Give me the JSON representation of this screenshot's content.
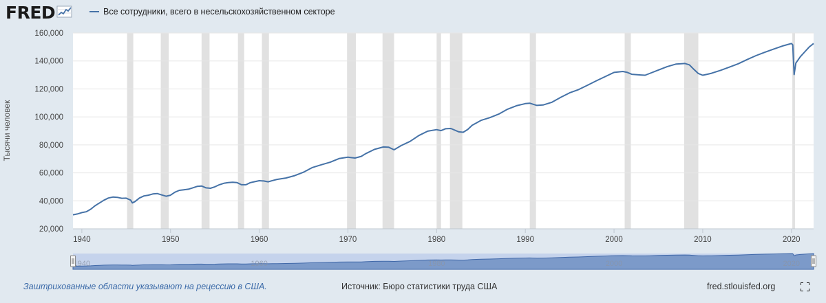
{
  "header": {
    "logo_text": "FRED",
    "logo_icon": "line-chart-icon",
    "series_label": "Все сотрудники, всего в несельскохозяйственном секторе"
  },
  "footer": {
    "recession_note": "Заштрихованные области указывают на рецессию в США.",
    "source": "Источник: Бюро статистики труда США",
    "site": "fred.stlouisfed.org",
    "fullscreen_icon": "fullscreen-icon"
  },
  "colors": {
    "line": "#4572a7",
    "recession": "#e1e1e1",
    "plot_bg": "#ffffff",
    "page_bg": "#e1e9f0",
    "navigator_fill": "#6f8fc3"
  },
  "chart_data": {
    "type": "line",
    "title": "",
    "xlabel": "",
    "ylabel": "Тысячи человек",
    "xlim": [
      1939.0,
      2022.5
    ],
    "ylim": [
      20000,
      160000
    ],
    "x_ticks": [
      1940,
      1950,
      1960,
      1970,
      1980,
      1990,
      2000,
      2010,
      2020
    ],
    "y_ticks": [
      20000,
      40000,
      60000,
      80000,
      100000,
      120000,
      140000,
      160000
    ],
    "y_tick_labels": [
      "20,000",
      "40,000",
      "60,000",
      "80,000",
      "100,000",
      "120,000",
      "140,000",
      "160,000"
    ],
    "grid": true,
    "legend": "top-left",
    "navigator_ticks": [
      "1940",
      "1960",
      "1980",
      "2000",
      "2020"
    ],
    "recessions": [
      [
        1945.1,
        1945.8
      ],
      [
        1948.9,
        1949.8
      ],
      [
        1953.5,
        1954.4
      ],
      [
        1957.6,
        1958.3
      ],
      [
        1960.3,
        1961.1
      ],
      [
        1969.9,
        1970.9
      ],
      [
        1973.9,
        1975.2
      ],
      [
        1980.0,
        1980.5
      ],
      [
        1981.5,
        1982.9
      ],
      [
        1990.5,
        1991.2
      ],
      [
        2001.2,
        2001.9
      ],
      [
        2007.9,
        2009.5
      ],
      [
        2020.1,
        2020.4
      ]
    ],
    "series": [
      {
        "name": "Все сотрудники, всего в несельскохозяйственном секторе",
        "points": [
          [
            1939.0,
            30000
          ],
          [
            1939.5,
            30600
          ],
          [
            1940.0,
            31600
          ],
          [
            1940.5,
            32200
          ],
          [
            1941.0,
            34000
          ],
          [
            1941.5,
            36500
          ],
          [
            1942.0,
            38500
          ],
          [
            1942.5,
            40500
          ],
          [
            1943.0,
            42000
          ],
          [
            1943.5,
            42700
          ],
          [
            1944.0,
            42500
          ],
          [
            1944.5,
            41800
          ],
          [
            1945.0,
            41900
          ],
          [
            1945.5,
            40500
          ],
          [
            1945.7,
            38500
          ],
          [
            1946.0,
            39500
          ],
          [
            1946.5,
            42000
          ],
          [
            1947.0,
            43500
          ],
          [
            1947.5,
            44000
          ],
          [
            1948.0,
            44900
          ],
          [
            1948.5,
            45200
          ],
          [
            1949.0,
            44200
          ],
          [
            1949.5,
            43300
          ],
          [
            1950.0,
            44000
          ],
          [
            1950.5,
            46200
          ],
          [
            1951.0,
            47500
          ],
          [
            1951.5,
            47900
          ],
          [
            1952.0,
            48300
          ],
          [
            1952.5,
            49300
          ],
          [
            1953.0,
            50300
          ],
          [
            1953.5,
            50600
          ],
          [
            1954.0,
            49300
          ],
          [
            1954.5,
            49000
          ],
          [
            1955.0,
            50000
          ],
          [
            1955.5,
            51500
          ],
          [
            1956.0,
            52500
          ],
          [
            1956.5,
            53000
          ],
          [
            1957.0,
            53300
          ],
          [
            1957.5,
            53000
          ],
          [
            1958.0,
            51500
          ],
          [
            1958.5,
            51500
          ],
          [
            1959.0,
            53000
          ],
          [
            1959.5,
            53700
          ],
          [
            1960.0,
            54400
          ],
          [
            1960.5,
            54200
          ],
          [
            1961.0,
            53600
          ],
          [
            1961.5,
            54500
          ],
          [
            1962.0,
            55300
          ],
          [
            1963.0,
            56300
          ],
          [
            1964.0,
            58000
          ],
          [
            1965.0,
            60500
          ],
          [
            1966.0,
            63800
          ],
          [
            1967.0,
            65800
          ],
          [
            1968.0,
            67600
          ],
          [
            1969.0,
            70200
          ],
          [
            1970.0,
            71200
          ],
          [
            1970.8,
            70600
          ],
          [
            1971.5,
            71800
          ],
          [
            1972.0,
            73700
          ],
          [
            1973.0,
            76800
          ],
          [
            1974.0,
            78500
          ],
          [
            1974.6,
            78300
          ],
          [
            1975.2,
            76500
          ],
          [
            1976.0,
            79500
          ],
          [
            1977.0,
            82500
          ],
          [
            1978.0,
            86700
          ],
          [
            1979.0,
            89800
          ],
          [
            1980.0,
            90900
          ],
          [
            1980.5,
            90200
          ],
          [
            1981.0,
            91500
          ],
          [
            1981.6,
            91700
          ],
          [
            1982.5,
            89300
          ],
          [
            1983.0,
            89000
          ],
          [
            1983.5,
            91000
          ],
          [
            1984.0,
            94000
          ],
          [
            1985.0,
            97500
          ],
          [
            1986.0,
            99500
          ],
          [
            1987.0,
            102000
          ],
          [
            1988.0,
            105500
          ],
          [
            1989.0,
            108000
          ],
          [
            1990.0,
            109500
          ],
          [
            1990.5,
            109800
          ],
          [
            1991.3,
            108200
          ],
          [
            1992.0,
            108500
          ],
          [
            1993.0,
            110500
          ],
          [
            1994.0,
            114000
          ],
          [
            1995.0,
            117200
          ],
          [
            1996.0,
            119500
          ],
          [
            1997.0,
            122600
          ],
          [
            1998.0,
            125800
          ],
          [
            1999.0,
            128800
          ],
          [
            2000.0,
            131800
          ],
          [
            2001.0,
            132500
          ],
          [
            2001.5,
            131800
          ],
          [
            2002.0,
            130500
          ],
          [
            2003.0,
            130000
          ],
          [
            2003.5,
            129800
          ],
          [
            2004.0,
            131000
          ],
          [
            2005.0,
            133500
          ],
          [
            2006.0,
            136000
          ],
          [
            2007.0,
            137800
          ],
          [
            2008.0,
            138200
          ],
          [
            2008.5,
            137200
          ],
          [
            2009.0,
            134000
          ],
          [
            2009.5,
            131000
          ],
          [
            2010.0,
            129800
          ],
          [
            2010.5,
            130500
          ],
          [
            2011.0,
            131200
          ],
          [
            2012.0,
            133300
          ],
          [
            2013.0,
            135600
          ],
          [
            2014.0,
            138000
          ],
          [
            2015.0,
            141000
          ],
          [
            2016.0,
            143800
          ],
          [
            2017.0,
            146200
          ],
          [
            2018.0,
            148500
          ],
          [
            2019.0,
            150700
          ],
          [
            2020.0,
            152500
          ],
          [
            2020.15,
            151500
          ],
          [
            2020.3,
            130300
          ],
          [
            2020.5,
            138500
          ],
          [
            2021.0,
            143000
          ],
          [
            2021.5,
            146500
          ],
          [
            2022.0,
            150000
          ],
          [
            2022.5,
            152500
          ]
        ]
      }
    ]
  }
}
